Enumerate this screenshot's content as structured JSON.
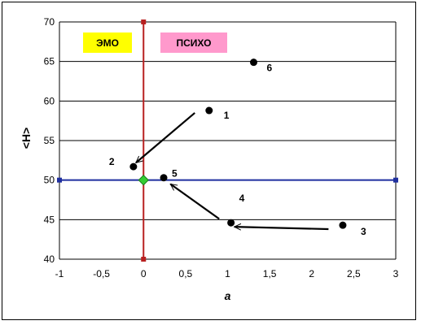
{
  "chart_data": {
    "type": "scatter",
    "title": "",
    "xlabel": "a",
    "ylabel": "<H>",
    "xlim": [
      -1,
      3
    ],
    "ylim": [
      40,
      70
    ],
    "xticks": [
      -1,
      -0.5,
      0,
      0.5,
      1,
      1.5,
      2,
      2.5,
      3
    ],
    "xtick_labels": [
      "-1",
      "-0,5",
      "0",
      "0,5",
      "1",
      "1,5",
      "2",
      "2,5",
      "3"
    ],
    "yticks": [
      40,
      45,
      50,
      55,
      60,
      65,
      70
    ],
    "ytick_labels": [
      "40",
      "45",
      "50",
      "55",
      "60",
      "65",
      "70"
    ],
    "grid": "horizontal",
    "points": [
      {
        "label": "1",
        "x": 0.78,
        "y": 58.8
      },
      {
        "label": "2",
        "x": -0.12,
        "y": 51.7
      },
      {
        "label": "3",
        "x": 2.37,
        "y": 44.3
      },
      {
        "label": "4",
        "x": 1.04,
        "y": 44.6
      },
      {
        "label": "5",
        "x": 0.24,
        "y": 50.3
      },
      {
        "label": "6",
        "x": 1.31,
        "y": 64.9
      }
    ],
    "origin_point": {
      "x": 0,
      "y": 50
    },
    "reference_lines": {
      "horizontal": {
        "y": 50,
        "color": "#1f2f9f"
      },
      "vertical": {
        "x": 0,
        "color": "#b82020"
      }
    },
    "arrows": [
      {
        "from": [
          0.61,
          58.5
        ],
        "to": [
          -0.09,
          52.2
        ]
      },
      {
        "from": [
          0.9,
          45.1
        ],
        "to": [
          0.32,
          49.5
        ]
      },
      {
        "from": [
          2.2,
          43.8
        ],
        "to": [
          1.08,
          44.1
        ]
      }
    ],
    "zones": [
      {
        "label": "ЭМО",
        "color": "#ffff00"
      },
      {
        "label": "ПСИХО",
        "color": "#ff99cc"
      }
    ],
    "colors": {
      "points": "#000000",
      "origin_marker": "#33cc33",
      "grid": "#000000"
    }
  }
}
